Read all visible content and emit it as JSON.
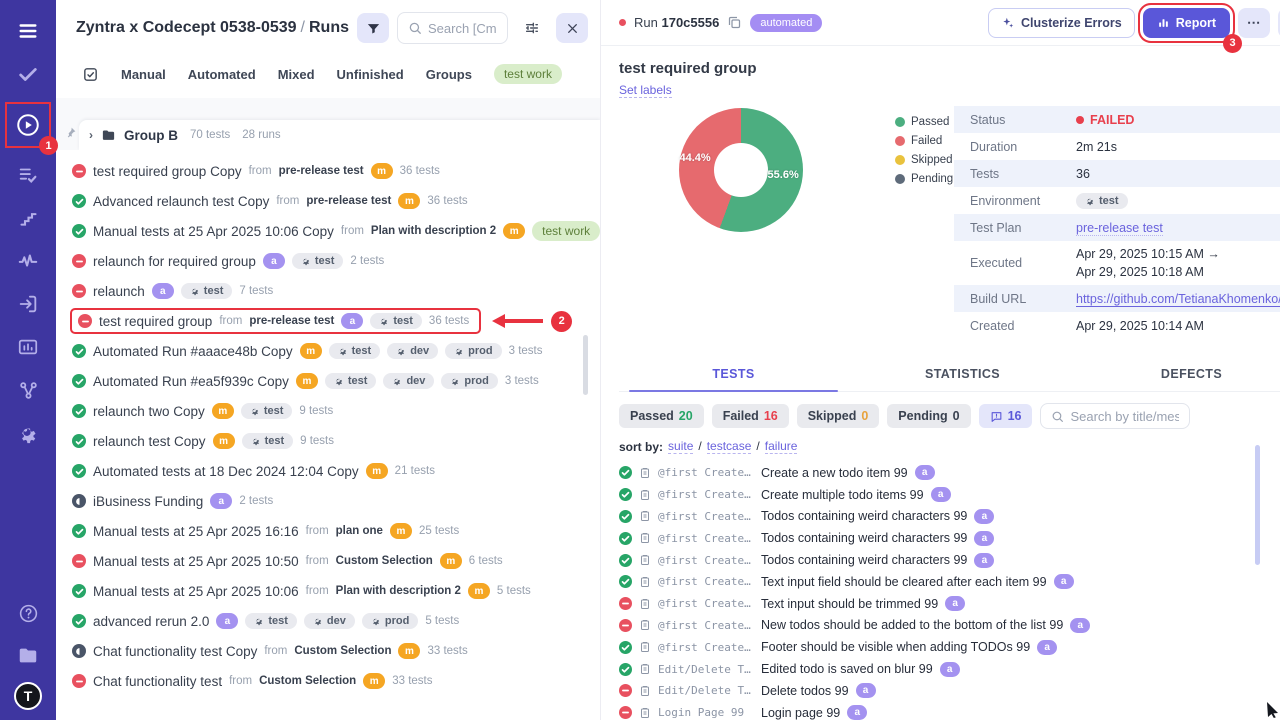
{
  "annotations": {
    "step1": "1",
    "step2": "2",
    "step3": "3"
  },
  "sidebar": {
    "items": [
      "menu",
      "check",
      "play",
      "list-check",
      "steps",
      "pulse",
      "sign-in",
      "analytics",
      "branch",
      "settings"
    ],
    "bottom_items": [
      "help",
      "projects"
    ],
    "avatar_letter": "T"
  },
  "runs_panel": {
    "title": "Zyntra x Codecept 0538-0539",
    "section": "Runs",
    "search_placeholder": "Search [Cmd + K]",
    "tabs": [
      "Manual",
      "Automated",
      "Mixed",
      "Unfinished",
      "Groups"
    ],
    "tab_badge": "test work",
    "group": {
      "name": "Group B",
      "tests": "70 tests",
      "runs": "28 runs"
    },
    "runs": [
      {
        "status": "failed",
        "title": "test required group Copy",
        "from": "pre-release test",
        "badge": "m",
        "envs": [],
        "count": "36 tests"
      },
      {
        "status": "passed",
        "title": "Advanced relaunch test Copy",
        "from": "pre-release test",
        "badge": "m",
        "envs": [],
        "count": "36 tests"
      },
      {
        "status": "passed",
        "title": "Manual tests at 25 Apr 2025 10:06 Copy",
        "from": "Plan with description 2",
        "badge": "m",
        "envs": [],
        "tag": "test work",
        "count": "5 tests"
      },
      {
        "status": "failed",
        "title": "relaunch for required group",
        "from": "",
        "badge": "a",
        "envs": [
          "test"
        ],
        "count": "2 tests"
      },
      {
        "status": "failed",
        "title": "relaunch",
        "from": "",
        "badge": "a",
        "envs": [
          "test"
        ],
        "count": "7 tests"
      },
      {
        "status": "failed",
        "title": "test required group",
        "from": "pre-release test",
        "badge": "a",
        "envs": [
          "test"
        ],
        "count": "36 tests",
        "highlighted": true
      },
      {
        "status": "passed",
        "title": "Automated Run #aaace48b Copy",
        "from": "",
        "badge": "m",
        "envs": [
          "test",
          "dev",
          "prod"
        ],
        "count": "3 tests"
      },
      {
        "status": "passed",
        "title": "Automated Run #ea5f939c Copy",
        "from": "",
        "badge": "m",
        "envs": [
          "test",
          "dev",
          "prod"
        ],
        "count": "3 tests"
      },
      {
        "status": "passed",
        "title": "relaunch two Copy",
        "from": "",
        "badge": "m",
        "envs": [
          "test"
        ],
        "count": "9 tests"
      },
      {
        "status": "passed",
        "title": "relaunch test Copy",
        "from": "",
        "badge": "m",
        "envs": [
          "test"
        ],
        "count": "9 tests"
      },
      {
        "status": "passed",
        "title": "Automated tests at 18 Dec 2024 12:04 Copy",
        "from": "",
        "badge": "m",
        "envs": [],
        "count": "21 tests"
      },
      {
        "status": "stopped",
        "title": "iBusiness Funding",
        "from": "",
        "badge": "a",
        "envs": [],
        "count": "2 tests"
      },
      {
        "status": "passed",
        "title": "Manual tests at 25 Apr 2025 16:16",
        "from": "plan one",
        "badge": "m",
        "envs": [],
        "count": "25 tests"
      },
      {
        "status": "failed",
        "title": "Manual tests at 25 Apr 2025 10:50",
        "from": "Custom Selection",
        "badge": "m",
        "envs": [],
        "count": "6 tests"
      },
      {
        "status": "passed",
        "title": "Manual tests at 25 Apr 2025 10:06",
        "from": "Plan with description 2",
        "badge": "m",
        "envs": [],
        "count": "5 tests"
      },
      {
        "status": "passed",
        "title": "advanced rerun 2.0",
        "from": "",
        "badge": "a",
        "envs": [
          "test",
          "dev",
          "prod"
        ],
        "count": "5 tests"
      },
      {
        "status": "stopped",
        "title": "Chat functionality test Copy",
        "from": "Custom Selection",
        "badge": "m",
        "envs": [],
        "count": "33 tests"
      },
      {
        "status": "failed",
        "title": "Chat functionality test",
        "from": "Custom Selection",
        "badge": "m",
        "envs": [],
        "count": "33 tests"
      }
    ]
  },
  "detail_panel": {
    "run_label": "Run",
    "run_id": "170c5556",
    "run_type": "automated",
    "clusterize_label": "Clusterize Errors",
    "report_label": "Report",
    "title": "test required group",
    "set_labels": "Set labels",
    "summary": [
      {
        "label": "Status",
        "value": "FAILED",
        "kind": "status"
      },
      {
        "label": "Duration",
        "value": "2m 21s",
        "kind": "text"
      },
      {
        "label": "Tests",
        "value": "36",
        "kind": "text"
      },
      {
        "label": "Environment",
        "value": "test",
        "kind": "env"
      },
      {
        "label": "Test Plan",
        "value": "pre-release test",
        "kind": "link"
      },
      {
        "label": "Executed",
        "value": "Apr 29, 2025 10:15 AM →\nApr 29, 2025 10:18 AM",
        "kind": "multiline"
      },
      {
        "label": "Build URL",
        "value": "https://github.com/TetianaKhomenko/Lo...",
        "kind": "link-ul"
      },
      {
        "label": "Created",
        "value": "Apr 29, 2025 10:14 AM",
        "kind": "text"
      }
    ],
    "tabs": [
      {
        "label": "TESTS",
        "active": true
      },
      {
        "label": "STATISTICS",
        "active": false
      },
      {
        "label": "DEFECTS",
        "active": false
      }
    ],
    "filters": [
      {
        "label": "Passed",
        "count": "20",
        "color": "#27a567"
      },
      {
        "label": "Failed",
        "count": "16",
        "color": "#e8404d"
      },
      {
        "label": "Skipped",
        "count": "0",
        "color": "#e8a33d"
      },
      {
        "label": "Pending",
        "count": "0",
        "color": "#39414f"
      }
    ],
    "comments_count": "16",
    "search_placeholder": "Search by title/message",
    "sort": {
      "label": "sort by:",
      "options": [
        "suite",
        "testcase",
        "failure"
      ]
    },
    "tests": [
      {
        "status": "passed",
        "suite": "@first Create…",
        "title": "Create a new todo item 99",
        "badge": "a"
      },
      {
        "status": "passed",
        "suite": "@first Create…",
        "title": "Create multiple todo items 99",
        "badge": "a"
      },
      {
        "status": "passed",
        "suite": "@first Create…",
        "title": "Todos containing weird characters 99",
        "badge": "a"
      },
      {
        "status": "passed",
        "suite": "@first Create…",
        "title": "Todos containing weird characters 99",
        "badge": "a"
      },
      {
        "status": "passed",
        "suite": "@first Create…",
        "title": "Todos containing weird characters 99",
        "badge": "a"
      },
      {
        "status": "passed",
        "suite": "@first Create…",
        "title": "Text input field should be cleared after each item 99",
        "badge": "a"
      },
      {
        "status": "failed",
        "suite": "@first Create…",
        "title": "Text input should be trimmed 99",
        "badge": "a"
      },
      {
        "status": "failed",
        "suite": "@first Create…",
        "title": "New todos should be added to the bottom of the list 99",
        "badge": "a"
      },
      {
        "status": "passed",
        "suite": "@first Create…",
        "title": "Footer should be visible when adding TODOs 99",
        "badge": "a"
      },
      {
        "status": "passed",
        "suite": "Edit/Delete T…",
        "title": "Edited todo is saved on blur 99",
        "badge": "a"
      },
      {
        "status": "failed",
        "suite": "Edit/Delete T…",
        "title": "Delete todos 99",
        "badge": "a"
      },
      {
        "status": "failed",
        "suite": "Login Page 99",
        "title": "Login page 99",
        "badge": "a"
      }
    ]
  },
  "chart_data": {
    "type": "pie",
    "donut": true,
    "labels": [
      "Passed",
      "Failed",
      "Skipped",
      "Pending"
    ],
    "values": [
      55.6,
      44.4,
      0,
      0
    ],
    "counts": [
      20,
      16,
      0,
      0
    ],
    "display_labels": [
      "55.6%",
      "44.4%"
    ],
    "colors": [
      "#4cae80",
      "#e66a6e",
      "#e9c23d",
      "#5e6b7a"
    ],
    "legend_position": "right",
    "title": ""
  },
  "colors": {
    "accent": "#5a57d9",
    "sidebar": "#3e36a0",
    "failed": "#e8404d",
    "passed": "#27a567",
    "annotation": "#e8323f"
  }
}
